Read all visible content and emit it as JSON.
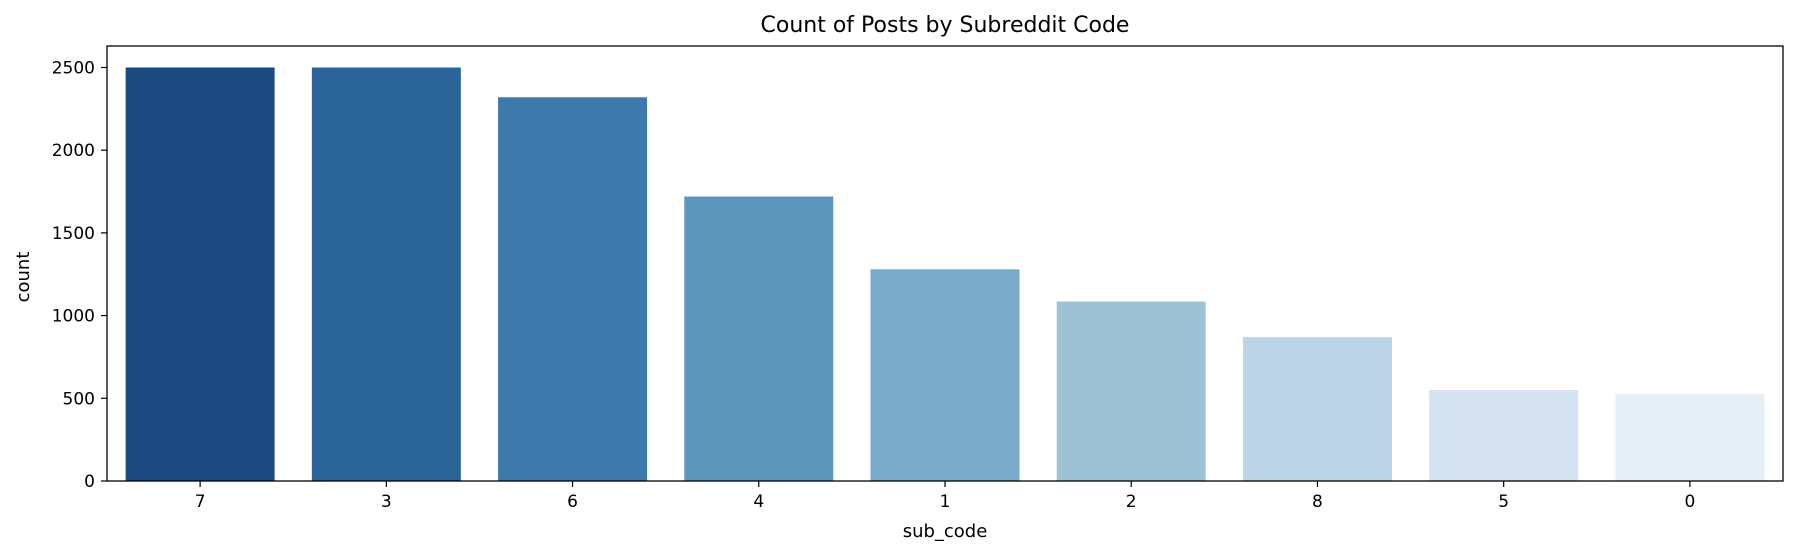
{
  "chart_data": {
    "type": "bar",
    "title": "Count of Posts by Subreddit Code",
    "xlabel": "sub_code",
    "ylabel": "count",
    "categories": [
      "7",
      "3",
      "6",
      "4",
      "1",
      "2",
      "8",
      "5",
      "0"
    ],
    "values": [
      2500,
      2500,
      2320,
      1720,
      1280,
      1085,
      870,
      550,
      525
    ],
    "colors": [
      "#1a4a7f",
      "#2a6499",
      "#3d7aab",
      "#5c96ba",
      "#79aac9",
      "#9dc2d6",
      "#bdd4e6",
      "#d5e2ef",
      "#e6eef7"
    ],
    "ylim": [
      0,
      2630
    ],
    "yticks": [
      0,
      500,
      1000,
      1500,
      2000,
      2500
    ],
    "grid": false,
    "legend": "none"
  }
}
